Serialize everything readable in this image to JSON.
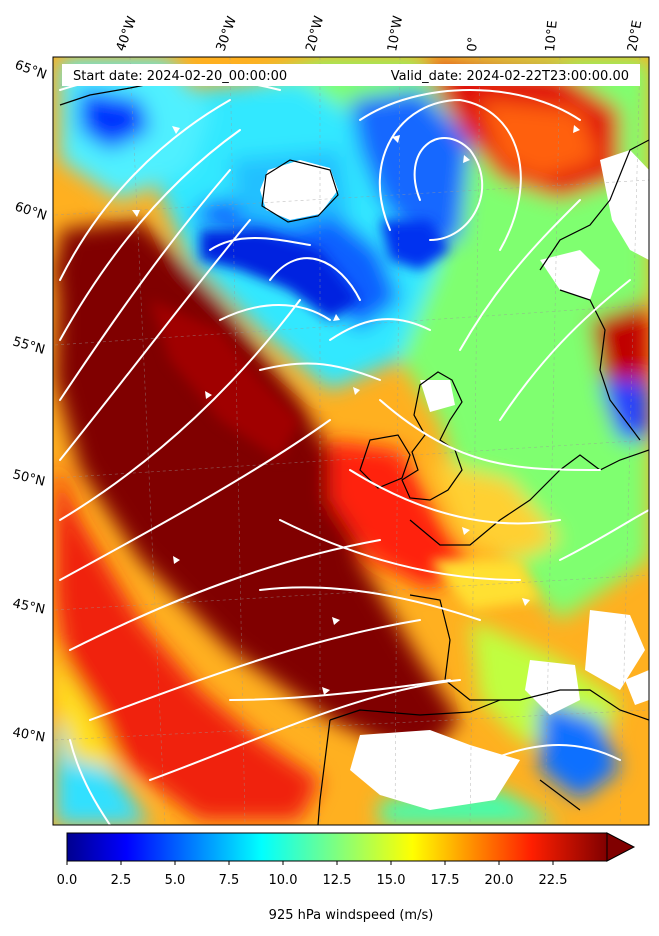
{
  "header": {
    "start_date": "Start date: 2024-02-20_00:00:00",
    "valid_date": "Valid_date: 2024-02-22T23:00:00.00"
  },
  "map": {
    "lon_labels": [
      "40°W",
      "30°W",
      "20°W",
      "10°W",
      "0°",
      "10°E",
      "20°E"
    ],
    "lat_labels": [
      "65°N",
      "60°N",
      "55°N",
      "50°N",
      "45°N",
      "40°N"
    ],
    "colors": {
      "ocean_low": "#0000c8",
      "mid": "#40ffb0",
      "high": "#800000",
      "land_missing": "#ffffff",
      "coastline": "#000000",
      "streamline": "#ffffff"
    }
  },
  "colorbar": {
    "label": "925 hPa windspeed (m/s)",
    "min": 0.0,
    "max": 25.0,
    "extend": "max",
    "ticks": [
      "0.0",
      "2.5",
      "5.0",
      "7.5",
      "10.0",
      "12.5",
      "15.0",
      "17.5",
      "20.0",
      "22.5"
    ]
  }
}
